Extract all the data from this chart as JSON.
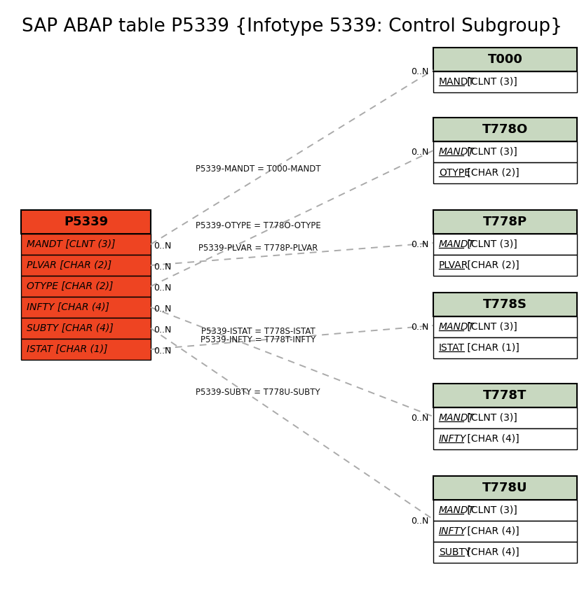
{
  "title": "SAP ABAP table P5339 {Infotype 5339: Control Subgroup}",
  "title_fontsize": 19,
  "background_color": "#ffffff",
  "fig_width": 8.33,
  "fig_height": 8.6,
  "dpi": 100,
  "main_table": {
    "name": "P5339",
    "header_color": "#ee4422",
    "row_color": "#ee4422",
    "border_color": "#000000",
    "fields": [
      {
        "name": "MANDT",
        "type": "[CLNT (3)]",
        "italic": true
      },
      {
        "name": "PLVAR",
        "type": "[CHAR (2)]",
        "italic": true
      },
      {
        "name": "OTYPE",
        "type": "[CHAR (2)]",
        "italic": true
      },
      {
        "name": "INFTY",
        "type": "[CHAR (4)]",
        "italic": true
      },
      {
        "name": "SUBTY",
        "type": "[CHAR (4)]",
        "italic": true
      },
      {
        "name": "ISTAT",
        "type": "[CHAR (1)]",
        "italic": true
      }
    ]
  },
  "right_tables": [
    {
      "name": "T000",
      "header_color": "#c8d8c0",
      "row_color": "#ffffff",
      "border_color": "#000000",
      "fields": [
        {
          "name": "MANDT",
          "type": "[CLNT (3)]",
          "italic": false,
          "underline": true
        }
      ],
      "relation_label": "P5339-MANDT = T000-MANDT",
      "from_field_idx": 0,
      "left_card": "0..N",
      "right_card": "0..N"
    },
    {
      "name": "T778O",
      "header_color": "#c8d8c0",
      "row_color": "#ffffff",
      "border_color": "#000000",
      "fields": [
        {
          "name": "MANDT",
          "type": "[CLNT (3)]",
          "italic": true,
          "underline": true
        },
        {
          "name": "OTYPE",
          "type": "[CHAR (2)]",
          "italic": false,
          "underline": true
        }
      ],
      "relation_label": "P5339-OTYPE = T778O-OTYPE",
      "from_field_idx": 2,
      "left_card": "0..N",
      "right_card": "0..N"
    },
    {
      "name": "T778P",
      "header_color": "#c8d8c0",
      "row_color": "#ffffff",
      "border_color": "#000000",
      "fields": [
        {
          "name": "MANDT",
          "type": "[CLNT (3)]",
          "italic": true,
          "underline": true
        },
        {
          "name": "PLVAR",
          "type": "[CHAR (2)]",
          "italic": false,
          "underline": true
        }
      ],
      "relation_label": "P5339-PLVAR = T778P-PLVAR",
      "from_field_idx": 1,
      "left_card": "0..N",
      "right_card": "0..N"
    },
    {
      "name": "T778S",
      "header_color": "#c8d8c0",
      "row_color": "#ffffff",
      "border_color": "#000000",
      "fields": [
        {
          "name": "MANDT",
          "type": "[CLNT (3)]",
          "italic": true,
          "underline": true
        },
        {
          "name": "ISTAT",
          "type": "[CHAR (1)]",
          "italic": false,
          "underline": true
        }
      ],
      "relation_label": "P5339-ISTAT = T778S-ISTAT",
      "from_field_idx": 5,
      "left_card": "0..N",
      "right_card": "0..N"
    },
    {
      "name": "T778T",
      "header_color": "#c8d8c0",
      "row_color": "#ffffff",
      "border_color": "#000000",
      "fields": [
        {
          "name": "MANDT",
          "type": "[CLNT (3)]",
          "italic": true,
          "underline": true
        },
        {
          "name": "INFTY",
          "type": "[CHAR (4)]",
          "italic": true,
          "underline": true
        }
      ],
      "relation_label": "P5339-INFTY = T778T-INFTY",
      "from_field_idx": 3,
      "left_card": "0..N",
      "right_card": "0..N"
    },
    {
      "name": "T778U",
      "header_color": "#c8d8c0",
      "row_color": "#ffffff",
      "border_color": "#000000",
      "fields": [
        {
          "name": "MANDT",
          "type": "[CLNT (3)]",
          "italic": true,
          "underline": true
        },
        {
          "name": "INFTY",
          "type": "[CHAR (4)]",
          "italic": true,
          "underline": true
        },
        {
          "name": "SUBTY",
          "type": "[CHAR (4)]",
          "italic": false,
          "underline": true
        }
      ],
      "relation_label": "P5339-SUBTY = T778U-SUBTY",
      "from_field_idx": 4,
      "left_card": "0..N",
      "right_card": "0..N"
    }
  ]
}
